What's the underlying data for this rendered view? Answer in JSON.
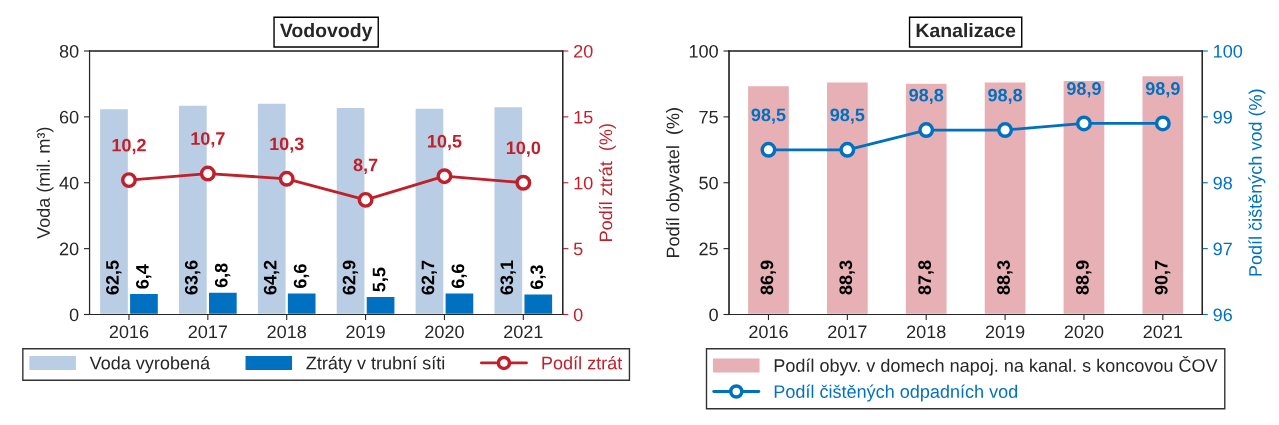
{
  "chart_data": [
    {
      "type": "bar",
      "title": "Vodovody",
      "categories": [
        "2016",
        "2017",
        "2018",
        "2019",
        "2020",
        "2021"
      ],
      "ylabel": "Voda (mil. m³)",
      "y2label": "Podíl ztrát  (%)",
      "ylim": [
        0,
        80
      ],
      "yticks": [
        0,
        20,
        40,
        60,
        80
      ],
      "y2lim": [
        0,
        20
      ],
      "y2ticks": [
        0,
        5,
        10,
        15,
        20
      ],
      "legend": "bottom",
      "marker": "circle",
      "grid": false,
      "series": [
        {
          "name": "Voda vyrobená",
          "color": "#b9cde5",
          "values": [
            62.5,
            63.6,
            64.2,
            62.9,
            62.7,
            63.1
          ],
          "value_labels": [
            "62,5",
            "63,6",
            "64,2",
            "62,9",
            "62,7",
            "63,1"
          ]
        },
        {
          "name": "Ztráty v trubní síti",
          "color": "#0070c0",
          "values": [
            6.4,
            6.8,
            6.6,
            5.5,
            6.6,
            6.3
          ],
          "value_labels": [
            "6,4",
            "6,8",
            "6,6",
            "5,5",
            "6,6",
            "6,3"
          ]
        },
        {
          "name": "Podíl ztrát",
          "type": "line",
          "axis": "y2",
          "color": "#c0202a",
          "values": [
            10.2,
            10.7,
            10.3,
            8.7,
            10.5,
            10.0
          ],
          "value_labels": [
            "10,2",
            "10,7",
            "10,3",
            "8,7",
            "10,5",
            "10,0"
          ]
        }
      ]
    },
    {
      "type": "bar",
      "title": "Kanalizace",
      "categories": [
        "2016",
        "2017",
        "2018",
        "2019",
        "2020",
        "2021"
      ],
      "ylabel": "Podíl obyvatel  (%)",
      "y2label": "Podíl čištěných vod (%)",
      "ylim": [
        0,
        100
      ],
      "yticks": [
        0,
        25,
        50,
        75,
        100
      ],
      "y2lim": [
        96,
        100
      ],
      "y2ticks": [
        96,
        97,
        98,
        99,
        100
      ],
      "legend": "bottom",
      "marker": "circle",
      "grid": false,
      "series": [
        {
          "name": "Podíl obyv. v domech napoj. na kanal. s koncovou ČOV",
          "color": "#e6b0b5",
          "values": [
            86.9,
            88.3,
            87.8,
            88.3,
            88.9,
            90.7
          ],
          "value_labels": [
            "86,9",
            "88,3",
            "87,8",
            "88,3",
            "88,9",
            "90,7"
          ]
        },
        {
          "name": "Podíl čištěných odpadních vod",
          "type": "line",
          "axis": "y2",
          "color": "#0070c0",
          "values": [
            98.5,
            98.5,
            98.8,
            98.8,
            98.9,
            98.9
          ],
          "value_labels": [
            "98,5",
            "98,5",
            "98,8",
            "98,8",
            "98,9",
            "98,9"
          ]
        }
      ]
    }
  ]
}
